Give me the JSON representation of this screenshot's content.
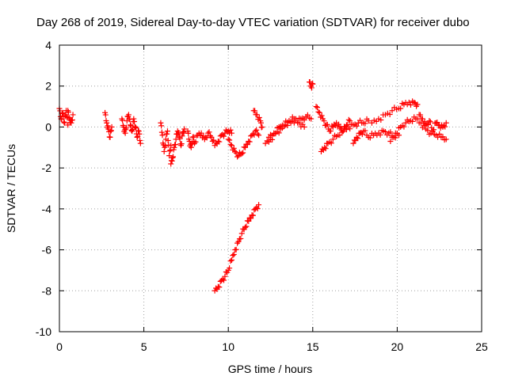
{
  "chart_data": {
    "type": "scatter",
    "title": "Day 268 of 2019, Sidereal Day-to-day VTEC variation (SDTVAR) for receiver dubo",
    "xlabel": "GPS time / hours",
    "ylabel": "SDTVAR / TECUs",
    "xlim": [
      0,
      25
    ],
    "ylim": [
      -10,
      4
    ],
    "xticks": [
      0,
      5,
      10,
      15,
      20,
      25
    ],
    "yticks": [
      -10,
      -8,
      -6,
      -4,
      -2,
      0,
      2,
      4
    ],
    "grid": true,
    "marker": "plus",
    "color": "#ff0000",
    "segments": [
      [
        [
          0.0,
          0.9
        ],
        [
          0.1,
          0.4
        ],
        [
          0.2,
          0.7
        ],
        [
          0.3,
          0.2
        ],
        [
          0.4,
          0.8
        ],
        [
          0.5,
          0.1
        ]
      ],
      [
        [
          0.5,
          0.8
        ],
        [
          0.6,
          0.4
        ],
        [
          0.7,
          0.2
        ],
        [
          0.8,
          0.6
        ]
      ],
      [
        [
          2.7,
          0.7
        ],
        [
          2.8,
          0.2
        ],
        [
          2.9,
          -0.1
        ],
        [
          3.0,
          -0.5
        ],
        [
          3.1,
          0.0
        ]
      ],
      [
        [
          3.7,
          0.4
        ],
        [
          3.8,
          0.0
        ],
        [
          3.9,
          -0.3
        ],
        [
          4.0,
          0.3
        ],
        [
          4.1,
          0.6
        ],
        [
          4.2,
          0.1
        ],
        [
          4.3,
          -0.2
        ],
        [
          4.4,
          0.4
        ],
        [
          4.5,
          0.0
        ],
        [
          4.6,
          -0.5
        ],
        [
          4.7,
          -0.2
        ],
        [
          4.8,
          -0.8
        ]
      ],
      [
        [
          6.0,
          0.2
        ],
        [
          6.1,
          -0.4
        ],
        [
          6.2,
          -1.2
        ],
        [
          6.3,
          -0.6
        ],
        [
          6.4,
          -0.2
        ],
        [
          6.5,
          -1.4
        ],
        [
          6.6,
          -0.9
        ]
      ],
      [
        [
          6.6,
          -1.8
        ],
        [
          6.7,
          -1.5
        ],
        [
          6.8,
          -1.0
        ],
        [
          6.9,
          -0.6
        ],
        [
          7.0,
          -0.2
        ],
        [
          7.1,
          -0.5
        ],
        [
          7.2,
          -0.9
        ],
        [
          7.3,
          -0.3
        ],
        [
          7.4,
          -0.1
        ]
      ],
      [
        [
          7.6,
          -0.2
        ],
        [
          7.7,
          -0.7
        ],
        [
          7.8,
          -1.0
        ],
        [
          7.9,
          -0.5
        ],
        [
          8.0,
          -0.8
        ],
        [
          8.2,
          -0.4
        ],
        [
          8.4,
          -0.3
        ],
        [
          8.6,
          -0.6
        ],
        [
          8.8,
          -0.3
        ],
        [
          9.0,
          -0.5
        ],
        [
          9.2,
          -0.9
        ],
        [
          9.4,
          -0.7
        ],
        [
          9.6,
          -0.4
        ],
        [
          9.8,
          -0.3
        ],
        [
          10.0,
          -0.2
        ],
        [
          10.2,
          -0.3
        ]
      ],
      [
        [
          10.0,
          -0.6
        ],
        [
          10.2,
          -0.9
        ],
        [
          10.4,
          -1.2
        ],
        [
          10.6,
          -1.4
        ],
        [
          10.8,
          -1.3
        ],
        [
          11.0,
          -1.0
        ],
        [
          11.2,
          -0.7
        ],
        [
          11.4,
          -0.4
        ],
        [
          11.6,
          -0.2
        ],
        [
          11.8,
          -0.4
        ]
      ],
      [
        [
          11.5,
          0.8
        ],
        [
          11.7,
          0.6
        ],
        [
          11.9,
          0.3
        ],
        [
          12.0,
          0.0
        ]
      ],
      [
        [
          12.2,
          -0.8
        ],
        [
          12.5,
          -0.6
        ],
        [
          12.8,
          -0.3
        ],
        [
          13.1,
          -0.1
        ],
        [
          13.4,
          0.1
        ],
        [
          13.7,
          0.2
        ],
        [
          14.0,
          0.3
        ],
        [
          14.3,
          0.4
        ],
        [
          14.6,
          0.5
        ],
        [
          14.9,
          0.4
        ]
      ],
      [
        [
          12.4,
          -0.5
        ],
        [
          12.7,
          -0.3
        ],
        [
          13.0,
          0.0
        ],
        [
          13.3,
          0.1
        ],
        [
          13.6,
          0.3
        ],
        [
          13.9,
          0.4
        ],
        [
          14.2,
          0.2
        ],
        [
          14.5,
          0.0
        ]
      ],
      [
        [
          14.8,
          2.2
        ],
        [
          14.9,
          2.0
        ],
        [
          15.0,
          2.1
        ]
      ],
      [
        [
          15.2,
          1.0
        ],
        [
          15.4,
          0.7
        ],
        [
          15.6,
          0.4
        ],
        [
          15.8,
          0.1
        ],
        [
          16.0,
          -0.2
        ],
        [
          16.2,
          0.0
        ],
        [
          16.4,
          0.2
        ],
        [
          16.6,
          0.0
        ],
        [
          16.8,
          -0.2
        ],
        [
          17.0,
          0.1
        ],
        [
          17.2,
          0.3
        ]
      ],
      [
        [
          15.5,
          -1.2
        ],
        [
          15.7,
          -1.0
        ],
        [
          15.9,
          -0.8
        ],
        [
          16.2,
          -0.6
        ],
        [
          16.5,
          -0.4
        ],
        [
          16.8,
          -0.2
        ],
        [
          17.1,
          0.0
        ],
        [
          17.4,
          0.1
        ],
        [
          17.7,
          0.2
        ],
        [
          18.0,
          0.2
        ],
        [
          18.3,
          0.3
        ]
      ],
      [
        [
          17.4,
          -0.8
        ],
        [
          17.6,
          -0.5
        ],
        [
          17.8,
          -0.3
        ],
        [
          18.0,
          -0.2
        ],
        [
          18.3,
          -0.5
        ],
        [
          18.6,
          -0.4
        ],
        [
          18.9,
          -0.3
        ],
        [
          19.2,
          -0.2
        ],
        [
          19.5,
          -0.3
        ],
        [
          19.8,
          -0.5
        ],
        [
          20.1,
          -0.4
        ]
      ],
      [
        [
          18.5,
          0.2
        ],
        [
          18.9,
          0.4
        ],
        [
          19.3,
          0.6
        ],
        [
          19.7,
          0.8
        ],
        [
          20.1,
          0.9
        ],
        [
          20.4,
          1.1
        ],
        [
          20.7,
          1.2
        ],
        [
          21.0,
          1.2
        ],
        [
          21.2,
          1.1
        ]
      ],
      [
        [
          19.6,
          -0.7
        ],
        [
          19.9,
          -0.3
        ],
        [
          20.2,
          0.0
        ],
        [
          20.5,
          0.2
        ],
        [
          20.8,
          0.3
        ],
        [
          21.1,
          0.4
        ],
        [
          21.4,
          0.2
        ],
        [
          21.7,
          -0.1
        ],
        [
          22.0,
          -0.3
        ],
        [
          22.3,
          -0.4
        ],
        [
          22.6,
          -0.5
        ],
        [
          22.9,
          -0.6
        ]
      ],
      [
        [
          21.3,
          0.6
        ],
        [
          21.5,
          0.4
        ],
        [
          21.7,
          0.1
        ],
        [
          21.9,
          0.3
        ],
        [
          22.1,
          -0.2
        ],
        [
          22.3,
          0.2
        ],
        [
          22.5,
          0.1
        ],
        [
          22.7,
          0.0
        ],
        [
          22.9,
          0.2
        ]
      ],
      [
        [
          9.2,
          -8.0
        ],
        [
          9.4,
          -7.8
        ],
        [
          9.6,
          -7.5
        ],
        [
          9.8,
          -7.3
        ],
        [
          10.0,
          -7.0
        ],
        [
          10.2,
          -6.5
        ],
        [
          10.4,
          -6.0
        ],
        [
          10.6,
          -5.6
        ],
        [
          10.8,
          -5.2
        ],
        [
          11.0,
          -4.9
        ],
        [
          11.2,
          -4.6
        ],
        [
          11.4,
          -4.3
        ],
        [
          11.6,
          -4.0
        ],
        [
          11.8,
          -3.8
        ]
      ]
    ]
  }
}
